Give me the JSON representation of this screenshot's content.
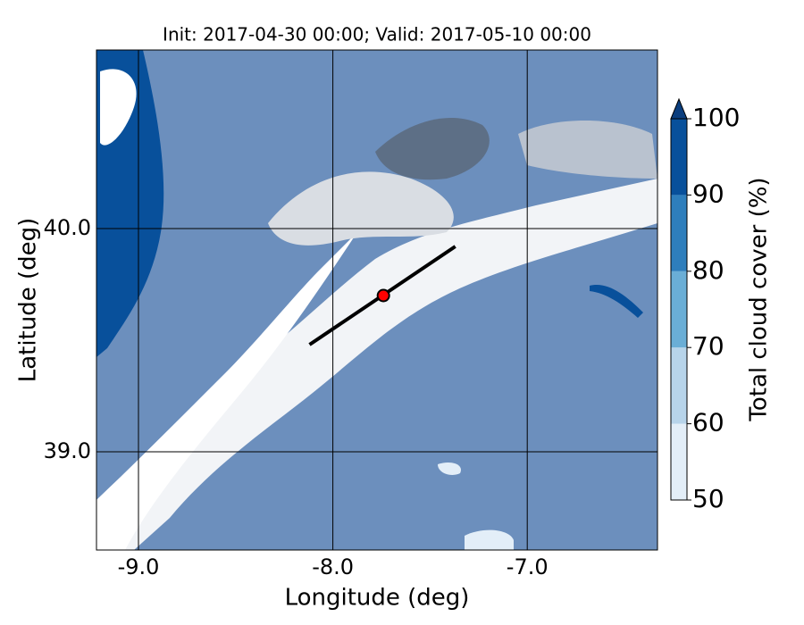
{
  "chart_data": {
    "type": "contour",
    "title": "Init: 2017-04-30 00:00; Valid: 2017-05-10 00:00",
    "x_label": "Longitude (deg)",
    "y_label": "Latitude (deg)",
    "xlim": [
      -9.216,
      -6.33
    ],
    "ylim": [
      38.56,
      40.8
    ],
    "xticks": [
      {
        "value": -9,
        "label": "-9.0"
      },
      {
        "value": -8,
        "label": "-8.0"
      },
      {
        "value": -7,
        "label": "-7.0"
      }
    ],
    "yticks": [
      {
        "value": 39,
        "label": "39.0"
      },
      {
        "value": 40,
        "label": "40.0"
      }
    ],
    "grid": true,
    "colorbar": {
      "label": "Total cloud cover (%)",
      "levels": [
        50,
        60,
        70,
        80,
        90,
        100
      ],
      "colors": [
        "#e3eef8",
        "#b7d4ea",
        "#6aaed6",
        "#2e7ebc",
        "#08509b"
      ],
      "extend_color": "#0b3e7e"
    },
    "transect": {
      "lon": [
        -8.12,
        -7.37
      ],
      "lat": [
        39.48,
        39.92
      ],
      "color": "#000000"
    },
    "marker": {
      "lon": -7.74,
      "lat": 39.7,
      "color": "#ff0000"
    }
  }
}
